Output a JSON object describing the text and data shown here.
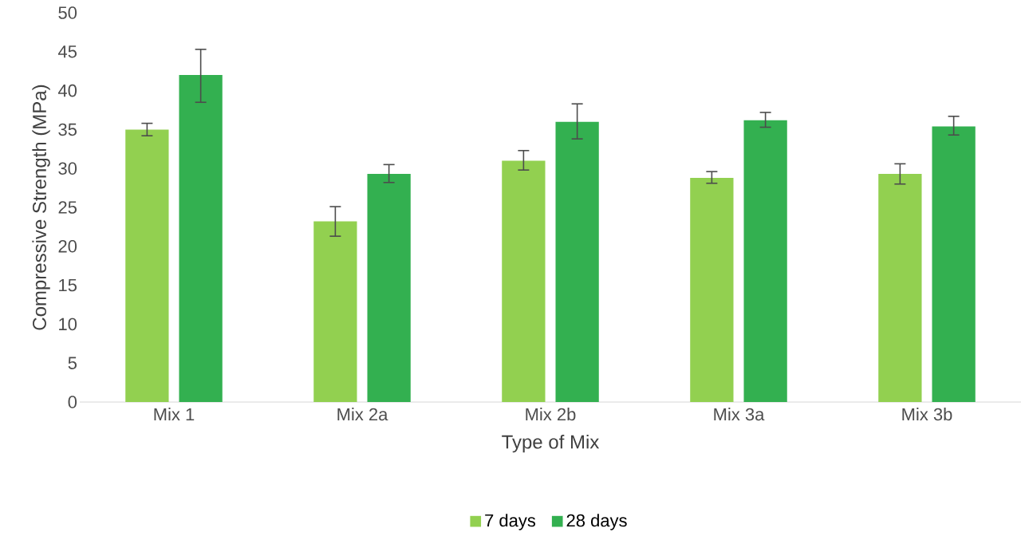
{
  "chart_data": {
    "type": "bar",
    "xlabel": "Type of Mix",
    "ylabel": "Compressive Strength (MPa)",
    "categories": [
      "Mix 1",
      "Mix 2a",
      "Mix 2b",
      "Mix 3a",
      "Mix 3b"
    ],
    "series": [
      {
        "name": "7 days",
        "color": "#92d050",
        "values": [
          35,
          23.2,
          31,
          28.8,
          29.3
        ],
        "errors": [
          [
            34.2,
            35.8
          ],
          [
            21.3,
            25.1
          ],
          [
            29.8,
            32.3
          ],
          [
            28.1,
            29.6
          ],
          [
            28,
            30.6
          ]
        ]
      },
      {
        "name": "28 days",
        "color": "#33b050",
        "values": [
          42,
          29.3,
          36,
          36.2,
          35.4
        ],
        "errors": [
          [
            38.5,
            45.3
          ],
          [
            28.2,
            30.5
          ],
          [
            33.8,
            38.3
          ],
          [
            35.3,
            37.2
          ],
          [
            34.3,
            36.7
          ]
        ]
      }
    ],
    "ylim": [
      0,
      50
    ],
    "yticks": [
      0,
      5,
      10,
      15,
      20,
      25,
      30,
      35,
      40,
      45,
      50
    ],
    "grid": false,
    "legend": "bottom"
  }
}
